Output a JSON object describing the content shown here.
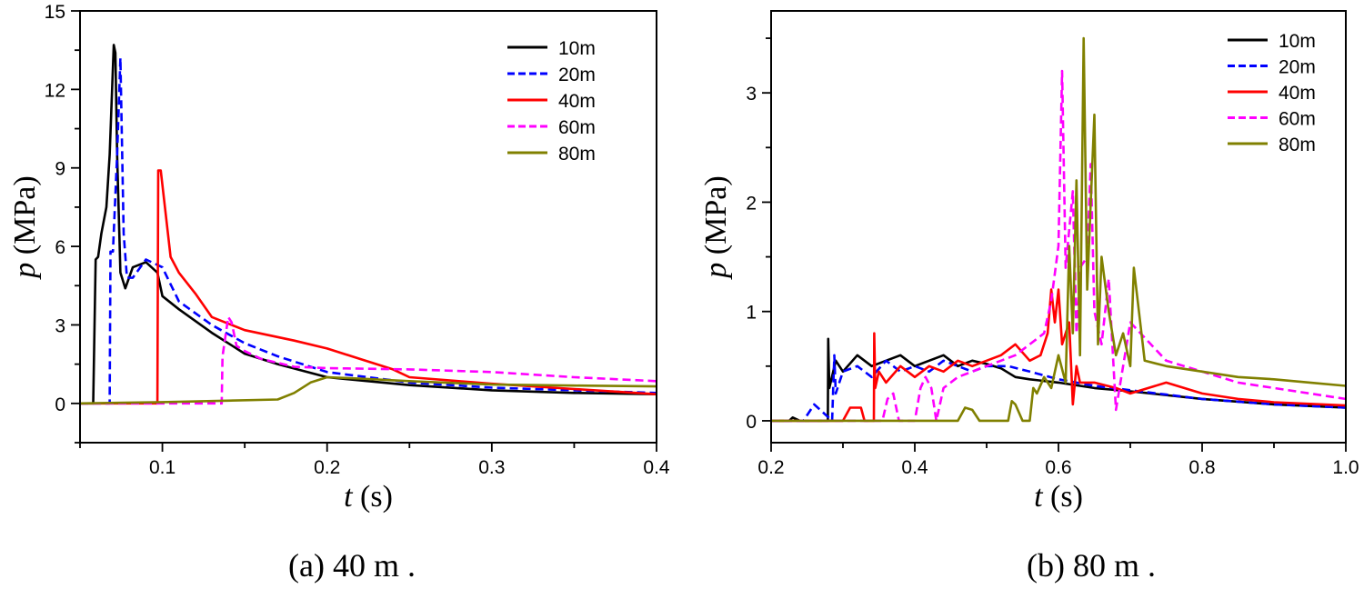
{
  "chart_data": [
    {
      "type": "line",
      "caption": "(a) 40 m .",
      "xlabel_var": "t",
      "xlabel_unit": " (s)",
      "ylabel_var": "p",
      "ylabel_unit": " (MPa)",
      "xlim": [
        0.05,
        0.4
      ],
      "ylim": [
        -1.5,
        15
      ],
      "xticks": [
        0.1,
        0.2,
        0.3,
        0.4
      ],
      "xtick_labels": [
        "0.1",
        "0.2",
        "0.3",
        "0.4"
      ],
      "yticks": [
        0,
        3,
        6,
        9,
        12,
        15
      ],
      "ytick_labels": [
        "0",
        "3",
        "6",
        "9",
        "12",
        "15"
      ],
      "grid": false,
      "legend": "top-right",
      "series": [
        {
          "name": "10m",
          "color": "#000000",
          "dash": "solid",
          "x": [
            0.05,
            0.058,
            0.0595,
            0.061,
            0.063,
            0.066,
            0.068,
            0.0705,
            0.0715,
            0.0725,
            0.0745,
            0.0775,
            0.082,
            0.09,
            0.097,
            0.1,
            0.11,
            0.13,
            0.15,
            0.17,
            0.2,
            0.25,
            0.3,
            0.35,
            0.4
          ],
          "y": [
            0,
            0,
            5.5,
            5.6,
            6.5,
            7.5,
            9.5,
            13.7,
            13.4,
            9.5,
            5.0,
            4.4,
            5.2,
            5.4,
            5.0,
            4.1,
            3.6,
            2.7,
            1.9,
            1.5,
            1.0,
            0.7,
            0.5,
            0.4,
            0.35
          ]
        },
        {
          "name": "20m",
          "color": "#0000ff",
          "dash": "dashed",
          "x": [
            0.05,
            0.068,
            0.0685,
            0.07,
            0.0725,
            0.0745,
            0.0765,
            0.0785,
            0.082,
            0.09,
            0.1,
            0.11,
            0.13,
            0.15,
            0.17,
            0.2,
            0.25,
            0.3,
            0.35,
            0.4
          ],
          "y": [
            0,
            0,
            5.8,
            5.8,
            9.5,
            13.2,
            6.5,
            4.8,
            4.8,
            5.5,
            5.2,
            3.9,
            3.0,
            2.3,
            1.8,
            1.2,
            0.8,
            0.6,
            0.5,
            0.4
          ]
        },
        {
          "name": "40m",
          "color": "#ff0000",
          "dash": "solid",
          "x": [
            0.05,
            0.097,
            0.0975,
            0.099,
            0.101,
            0.105,
            0.11,
            0.12,
            0.13,
            0.15,
            0.18,
            0.2,
            0.22,
            0.24,
            0.25,
            0.28,
            0.3,
            0.35,
            0.4
          ],
          "y": [
            0,
            0,
            8.9,
            8.9,
            7.8,
            5.6,
            5.0,
            4.2,
            3.3,
            2.8,
            2.4,
            2.1,
            1.7,
            1.3,
            1.0,
            0.85,
            0.75,
            0.55,
            0.35
          ]
        },
        {
          "name": "60m",
          "color": "#ff00ff",
          "dash": "dashed",
          "x": [
            0.05,
            0.136,
            0.1365,
            0.14,
            0.142,
            0.145,
            0.15,
            0.16,
            0.18,
            0.2,
            0.25,
            0.3,
            0.35,
            0.4
          ],
          "y": [
            0,
            0,
            1.8,
            3.3,
            3.1,
            2.2,
            2.0,
            1.7,
            1.4,
            1.35,
            1.3,
            1.2,
            1.0,
            0.85
          ]
        },
        {
          "name": "80m",
          "color": "#808000",
          "dash": "solid",
          "x": [
            0.05,
            0.1,
            0.17,
            0.18,
            0.19,
            0.2,
            0.22,
            0.25,
            0.3,
            0.35,
            0.4
          ],
          "y": [
            0,
            0.05,
            0.15,
            0.4,
            0.8,
            1.0,
            0.95,
            0.85,
            0.72,
            0.68,
            0.65
          ]
        }
      ]
    },
    {
      "type": "line",
      "caption": "(b) 80 m .",
      "xlabel_var": "t",
      "xlabel_unit": " (s)",
      "ylabel_var": "p",
      "ylabel_unit": " (MPa)",
      "xlim": [
        0.2,
        1.0
      ],
      "ylim": [
        -0.2,
        3.75
      ],
      "xticks": [
        0.2,
        0.4,
        0.6,
        0.8,
        1.0
      ],
      "xtick_labels": [
        "0.2",
        "0.4",
        "0.6",
        "0.8",
        "1.0"
      ],
      "yticks": [
        0,
        1,
        2,
        3
      ],
      "ytick_labels": [
        "0",
        "1",
        "2",
        "3"
      ],
      "grid": false,
      "legend": "top-right",
      "series": [
        {
          "name": "10m",
          "color": "#000000",
          "dash": "solid",
          "x": [
            0.2,
            0.225,
            0.23,
            0.24,
            0.279,
            0.2795,
            0.281,
            0.29,
            0.3,
            0.32,
            0.34,
            0.36,
            0.38,
            0.4,
            0.42,
            0.44,
            0.46,
            0.48,
            0.5,
            0.52,
            0.54,
            0.56,
            0.6,
            0.65,
            0.7,
            0.8,
            0.9,
            1.0
          ],
          "y": [
            0,
            0,
            0.03,
            0,
            0,
            0.75,
            0.3,
            0.55,
            0.45,
            0.6,
            0.5,
            0.55,
            0.6,
            0.5,
            0.55,
            0.6,
            0.5,
            0.55,
            0.52,
            0.48,
            0.4,
            0.38,
            0.35,
            0.3,
            0.27,
            0.2,
            0.15,
            0.12
          ]
        },
        {
          "name": "20m",
          "color": "#0000ff",
          "dash": "dashed",
          "x": [
            0.2,
            0.245,
            0.25,
            0.26,
            0.285,
            0.288,
            0.29,
            0.3,
            0.32,
            0.34,
            0.36,
            0.38,
            0.4,
            0.42,
            0.44,
            0.46,
            0.48,
            0.5,
            0.53,
            0.56,
            0.6,
            0.65,
            0.7,
            0.75,
            0.8,
            0.9,
            1.0
          ],
          "y": [
            0,
            0,
            0.05,
            0.15,
            0,
            0.6,
            0.25,
            0.45,
            0.5,
            0.4,
            0.55,
            0.45,
            0.5,
            0.45,
            0.55,
            0.5,
            0.45,
            0.5,
            0.5,
            0.45,
            0.38,
            0.32,
            0.28,
            0.24,
            0.2,
            0.15,
            0.12
          ]
        },
        {
          "name": "40m",
          "color": "#ff0000",
          "dash": "solid",
          "x": [
            0.2,
            0.3,
            0.31,
            0.325,
            0.33,
            0.343,
            0.3435,
            0.345,
            0.35,
            0.36,
            0.38,
            0.4,
            0.42,
            0.44,
            0.46,
            0.48,
            0.5,
            0.52,
            0.54,
            0.56,
            0.575,
            0.585,
            0.59,
            0.595,
            0.6,
            0.605,
            0.615,
            0.62,
            0.625,
            0.63,
            0.65,
            0.68,
            0.7,
            0.75,
            0.8,
            0.85,
            0.9,
            1.0
          ],
          "y": [
            0,
            0,
            0.12,
            0.12,
            0,
            0,
            0.8,
            0.3,
            0.45,
            0.35,
            0.5,
            0.4,
            0.5,
            0.45,
            0.55,
            0.5,
            0.55,
            0.6,
            0.7,
            0.55,
            0.6,
            0.8,
            1.2,
            0.9,
            1.2,
            0.7,
            0.9,
            0.15,
            0.5,
            0.35,
            0.35,
            0.3,
            0.25,
            0.35,
            0.25,
            0.2,
            0.17,
            0.14
          ]
        },
        {
          "name": "60m",
          "color": "#ff00ff",
          "dash": "dashed",
          "x": [
            0.2,
            0.355,
            0.362,
            0.37,
            0.378,
            0.4,
            0.408,
            0.415,
            0.423,
            0.43,
            0.44,
            0.46,
            0.48,
            0.5,
            0.52,
            0.54,
            0.56,
            0.58,
            0.59,
            0.6,
            0.605,
            0.61,
            0.62,
            0.625,
            0.63,
            0.64,
            0.645,
            0.65,
            0.66,
            0.67,
            0.68,
            0.7,
            0.75,
            0.8,
            0.85,
            0.9,
            1.0
          ],
          "y": [
            0,
            0,
            0.2,
            0.25,
            0,
            0,
            0.3,
            0.4,
            0.3,
            0,
            0.3,
            0.4,
            0.45,
            0.5,
            0.55,
            0.6,
            0.7,
            0.8,
            1.1,
            1.6,
            3.2,
            1.4,
            2.1,
            0.8,
            1.4,
            1.5,
            2.35,
            1.0,
            0.7,
            1.3,
            0.1,
            0.9,
            0.55,
            0.45,
            0.35,
            0.3,
            0.2
          ]
        },
        {
          "name": "80m",
          "color": "#808000",
          "dash": "solid",
          "x": [
            0.2,
            0.46,
            0.47,
            0.48,
            0.49,
            0.53,
            0.535,
            0.54,
            0.55,
            0.56,
            0.565,
            0.57,
            0.58,
            0.59,
            0.6,
            0.61,
            0.615,
            0.62,
            0.625,
            0.63,
            0.635,
            0.64,
            0.645,
            0.65,
            0.655,
            0.66,
            0.67,
            0.68,
            0.69,
            0.7,
            0.705,
            0.72,
            0.75,
            0.8,
            0.85,
            0.9,
            0.95,
            1.0
          ],
          "y": [
            0,
            0,
            0.12,
            0.1,
            0,
            0,
            0.18,
            0.15,
            0,
            0,
            0.3,
            0.25,
            0.4,
            0.3,
            0.6,
            0.35,
            1.6,
            0.8,
            2.2,
            0.6,
            3.5,
            1.2,
            2.0,
            2.8,
            0.7,
            1.5,
            1.0,
            0.6,
            0.8,
            0.5,
            1.4,
            0.55,
            0.5,
            0.45,
            0.4,
            0.38,
            0.35,
            0.32
          ]
        }
      ]
    }
  ]
}
